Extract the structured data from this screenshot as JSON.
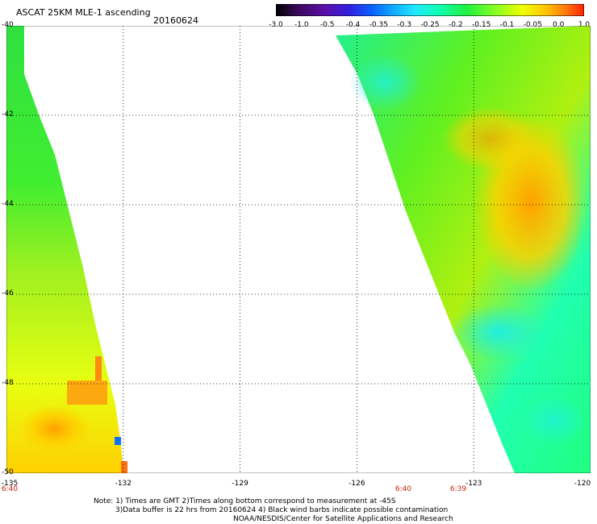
{
  "header": {
    "title": "ASCAT 25KM MLE-1 ascending",
    "date": "20160624"
  },
  "colorbar": {
    "labels": [
      "-3.0",
      "-1.0",
      "-0.5",
      "-0.4",
      "-0.35",
      "-0.3",
      "-0.25",
      "-0.2",
      "-0.15",
      "-0.1",
      "-0.05",
      "0.0",
      "1.0"
    ],
    "colors": [
      "#000000",
      "#3a0a5a",
      "#5a10a8",
      "#3020e0",
      "#0a60ff",
      "#10a8ff",
      "#20e8ff",
      "#10ffb0",
      "#20f040",
      "#90ff20",
      "#f0ff00",
      "#ffc000",
      "#ff7a10",
      "#ff2000"
    ]
  },
  "map": {
    "lat_labels": [
      "-40",
      "-42",
      "-44",
      "-46",
      "-48",
      "-50"
    ],
    "lon_labels": [
      "-135",
      "-132",
      "-129",
      "-126",
      "-123",
      "-120"
    ],
    "time_labels": [
      "6:40",
      "6:40",
      "6:39"
    ]
  },
  "notes": {
    "line1": "Note: 1) Times are GMT 2)Times along bottom correspond to measurement at -45S",
    "line2": "3)Data buffer is 22 hrs from 20160624 4) Black wind barbs indicate possible contamination",
    "line3": "NOAA/NESDIS/Center for Satellite Applications and Research"
  }
}
